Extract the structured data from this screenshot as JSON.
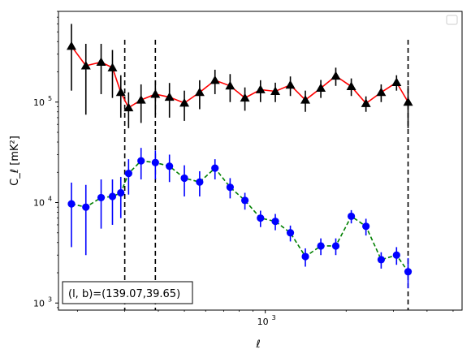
{
  "chart_data": {
    "type": "scatter",
    "xscale": "log",
    "yscale": "log",
    "xlabel": "ℓ",
    "ylabel": "C_ℓ [mK²]",
    "xlim": [
      170,
      5400
    ],
    "ylim": [
      850,
      800000
    ],
    "x_major_ticks": [
      {
        "value": 1000,
        "base": "10",
        "exp": "3"
      }
    ],
    "y_major_ticks": [
      {
        "value": 1000,
        "base": "10",
        "exp": "3"
      },
      {
        "value": 10000,
        "base": "10",
        "exp": "4"
      },
      {
        "value": 100000,
        "base": "10",
        "exp": "5"
      }
    ],
    "legend": {
      "placement": "top-right",
      "entries": []
    },
    "annotation": "(l, b)=(139.07,39.65)",
    "vlines": [
      {
        "x": 300,
        "style": "dashed",
        "color": "#000000"
      },
      {
        "x": 390,
        "style": "dashed",
        "color": "#000000"
      },
      {
        "x": 3400,
        "style": "dashed",
        "color": "#000000"
      }
    ],
    "series": [
      {
        "marker": "triangle",
        "color": "#000000",
        "line_color": "#ff0000",
        "line_style": "solid",
        "points": [
          {
            "x": 190,
            "y": 360000,
            "lo": 130000,
            "hi": 600000
          },
          {
            "x": 215,
            "y": 230000,
            "lo": 75000,
            "hi": 380000
          },
          {
            "x": 245,
            "y": 250000,
            "lo": 120000,
            "hi": 380000
          },
          {
            "x": 270,
            "y": 220000,
            "lo": 110000,
            "hi": 330000
          },
          {
            "x": 290,
            "y": 125000,
            "lo": 70000,
            "hi": 185000
          },
          {
            "x": 310,
            "y": 88000,
            "lo": 55000,
            "hi": 125000
          },
          {
            "x": 345,
            "y": 105000,
            "lo": 62000,
            "hi": 150000
          },
          {
            "x": 390,
            "y": 120000,
            "lo": 75000,
            "hi": 165000
          },
          {
            "x": 440,
            "y": 112000,
            "lo": 70000,
            "hi": 155000
          },
          {
            "x": 500,
            "y": 98000,
            "lo": 65000,
            "hi": 130000
          },
          {
            "x": 570,
            "y": 125000,
            "lo": 85000,
            "hi": 165000
          },
          {
            "x": 650,
            "y": 165000,
            "lo": 120000,
            "hi": 210000
          },
          {
            "x": 740,
            "y": 145000,
            "lo": 100000,
            "hi": 190000
          },
          {
            "x": 840,
            "y": 110000,
            "lo": 82000,
            "hi": 140000
          },
          {
            "x": 960,
            "y": 133000,
            "lo": 100000,
            "hi": 165000
          },
          {
            "x": 1090,
            "y": 128000,
            "lo": 100000,
            "hi": 156000
          },
          {
            "x": 1240,
            "y": 148000,
            "lo": 115000,
            "hi": 180000
          },
          {
            "x": 1410,
            "y": 105000,
            "lo": 80000,
            "hi": 130000
          },
          {
            "x": 1610,
            "y": 138000,
            "lo": 110000,
            "hi": 166000
          },
          {
            "x": 1830,
            "y": 182000,
            "lo": 145000,
            "hi": 220000
          },
          {
            "x": 2090,
            "y": 143000,
            "lo": 115000,
            "hi": 172000
          },
          {
            "x": 2370,
            "y": 97000,
            "lo": 80000,
            "hi": 114000
          },
          {
            "x": 2700,
            "y": 125000,
            "lo": 100000,
            "hi": 150000
          },
          {
            "x": 3080,
            "y": 157000,
            "lo": 130000,
            "hi": 185000
          },
          {
            "x": 3400,
            "y": 100000,
            "lo": 55000,
            "hi": 145000
          }
        ]
      },
      {
        "marker": "circle",
        "color": "#0000ff",
        "line_color": "#008000",
        "line_style": "dashed",
        "points": [
          {
            "x": 190,
            "y": 9700,
            "lo": 3600,
            "hi": 15800
          },
          {
            "x": 215,
            "y": 9000,
            "lo": 3000,
            "hi": 15000
          },
          {
            "x": 245,
            "y": 11200,
            "lo": 5500,
            "hi": 17000
          },
          {
            "x": 270,
            "y": 11500,
            "lo": 6000,
            "hi": 17000
          },
          {
            "x": 290,
            "y": 12500,
            "lo": 7000,
            "hi": 18000
          },
          {
            "x": 310,
            "y": 19500,
            "lo": 12000,
            "hi": 27000
          },
          {
            "x": 345,
            "y": 26000,
            "lo": 17000,
            "hi": 35000
          },
          {
            "x": 390,
            "y": 25000,
            "lo": 17000,
            "hi": 33000
          },
          {
            "x": 440,
            "y": 23000,
            "lo": 16000,
            "hi": 30000
          },
          {
            "x": 500,
            "y": 17500,
            "lo": 11500,
            "hi": 23500
          },
          {
            "x": 570,
            "y": 16000,
            "lo": 11500,
            "hi": 20500
          },
          {
            "x": 650,
            "y": 22000,
            "lo": 17000,
            "hi": 27000
          },
          {
            "x": 740,
            "y": 14200,
            "lo": 11000,
            "hi": 17500
          },
          {
            "x": 840,
            "y": 10500,
            "lo": 8500,
            "hi": 12500
          },
          {
            "x": 960,
            "y": 7000,
            "lo": 5700,
            "hi": 8300
          },
          {
            "x": 1090,
            "y": 6500,
            "lo": 5300,
            "hi": 7700
          },
          {
            "x": 1240,
            "y": 5000,
            "lo": 4100,
            "hi": 5900
          },
          {
            "x": 1410,
            "y": 2900,
            "lo": 2300,
            "hi": 3500
          },
          {
            "x": 1610,
            "y": 3700,
            "lo": 3000,
            "hi": 4400
          },
          {
            "x": 1830,
            "y": 3700,
            "lo": 3000,
            "hi": 4400
          },
          {
            "x": 2090,
            "y": 7300,
            "lo": 6200,
            "hi": 8400
          },
          {
            "x": 2370,
            "y": 5800,
            "lo": 4700,
            "hi": 6900
          },
          {
            "x": 2700,
            "y": 2700,
            "lo": 2200,
            "hi": 3200
          },
          {
            "x": 3080,
            "y": 3000,
            "lo": 2400,
            "hi": 3600
          },
          {
            "x": 3400,
            "y": 2050,
            "lo": 1400,
            "hi": 2800
          }
        ]
      }
    ]
  }
}
